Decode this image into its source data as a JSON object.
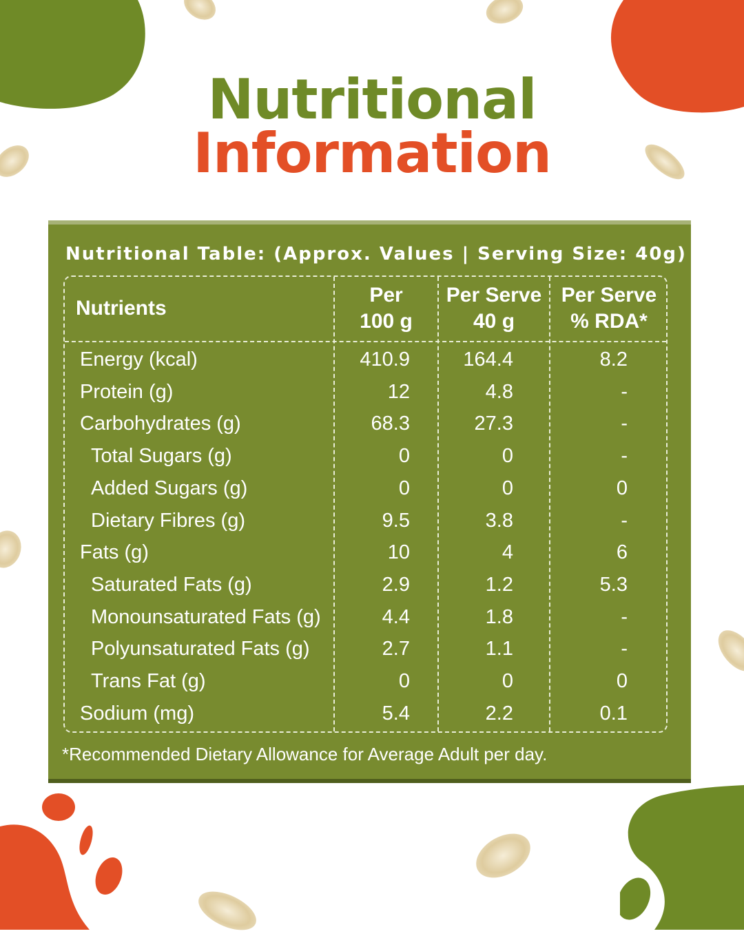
{
  "heading": {
    "line1": "Nutritional",
    "line2": "Information"
  },
  "colors": {
    "green": "#6f8a27",
    "orange": "#e34f26",
    "panel": "#788b2f"
  },
  "table": {
    "caption": "Nutritional Table: (Approx. Values | Serving Size: 40g)",
    "headers": {
      "nutrients": "Nutrients",
      "per100_line1": "Per",
      "per100_line2": "100 g",
      "serve_line1": "Per Serve",
      "serve_line2": "40 g",
      "rda_line1": "Per Serve",
      "rda_line2": "% RDA*"
    },
    "rows": [
      {
        "name": "Energy (kcal)",
        "per100": "410.9",
        "serve": "164.4",
        "rda": "8.2",
        "indent": false
      },
      {
        "name": "Protein (g)",
        "per100": "12",
        "serve": "4.8",
        "rda": "-",
        "indent": false
      },
      {
        "name": "Carbohydrates (g)",
        "per100": "68.3",
        "serve": "27.3",
        "rda": "-",
        "indent": false
      },
      {
        "name": "Total Sugars (g)",
        "per100": "0",
        "serve": "0",
        "rda": "-",
        "indent": true
      },
      {
        "name": "Added Sugars (g)",
        "per100": "0",
        "serve": "0",
        "rda": "0",
        "indent": true
      },
      {
        "name": "Dietary Fibres (g)",
        "per100": "9.5",
        "serve": "3.8",
        "rda": "-",
        "indent": true
      },
      {
        "name": "Fats (g)",
        "per100": "10",
        "serve": "4",
        "rda": "6",
        "indent": false
      },
      {
        "name": "Saturated Fats (g)",
        "per100": "2.9",
        "serve": "1.2",
        "rda": "5.3",
        "indent": true
      },
      {
        "name": "Monounsaturated Fats (g)",
        "per100": "4.4",
        "serve": "1.8",
        "rda": "-",
        "indent": true
      },
      {
        "name": "Polyunsaturated Fats (g)",
        "per100": "2.7",
        "serve": "1.1",
        "rda": "-",
        "indent": true
      },
      {
        "name": "Trans Fat (g)",
        "per100": "0",
        "serve": "0",
        "rda": "0",
        "indent": true
      },
      {
        "name": "Sodium (mg)",
        "per100": "5.4",
        "serve": "2.2",
        "rda": "0.1",
        "indent": false
      }
    ],
    "footnote": "*Recommended Dietary Allowance for Average Adult per day."
  }
}
